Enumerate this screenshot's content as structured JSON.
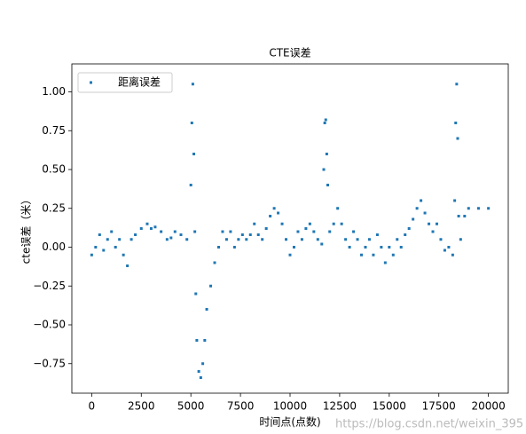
{
  "chart_data": {
    "type": "scatter",
    "title": "CTE误差",
    "x_label": "时间点(点数)",
    "y_label": "cte误差（米）",
    "annotation": "https://blog.csdn.net/weixin_395",
    "legend": "upper left",
    "series": [
      {
        "name": "距离误差",
        "color": "#1f77b4",
        "x": [
          0,
          200,
          400,
          600,
          800,
          1000,
          1200,
          1400,
          1600,
          1800,
          2000,
          2200,
          2500,
          2800,
          3000,
          3200,
          3500,
          3800,
          4000,
          4200,
          4500,
          4800,
          5000,
          5050,
          5100,
          5150,
          5200,
          5250,
          5300,
          5400,
          5500,
          5600,
          5700,
          5800,
          6000,
          6200,
          6400,
          6600,
          6800,
          7000,
          7200,
          7400,
          7600,
          7800,
          8000,
          8200,
          8400,
          8600,
          8800,
          9000,
          9200,
          9400,
          9600,
          9800,
          10000,
          10200,
          10400,
          10600,
          10800,
          11000,
          11200,
          11400,
          11600,
          11700,
          11750,
          11800,
          11850,
          11900,
          12000,
          12200,
          12400,
          12600,
          12800,
          13000,
          13200,
          13400,
          13600,
          13800,
          14000,
          14200,
          14400,
          14600,
          14800,
          15000,
          15200,
          15400,
          15600,
          15800,
          16000,
          16200,
          16400,
          16600,
          16800,
          17000,
          17200,
          17400,
          17600,
          17800,
          18000,
          18200,
          18300,
          18350,
          18400,
          18450,
          18500,
          18600,
          18800,
          19000,
          19500,
          20000
        ],
        "values": [
          -0.05,
          0.0,
          0.08,
          -0.02,
          0.05,
          0.1,
          0.0,
          0.05,
          -0.05,
          -0.12,
          0.05,
          0.08,
          0.12,
          0.15,
          0.12,
          0.13,
          0.1,
          0.05,
          0.06,
          0.1,
          0.08,
          0.05,
          0.4,
          0.8,
          1.05,
          0.6,
          0.1,
          -0.3,
          -0.6,
          -0.8,
          -0.84,
          -0.75,
          -0.6,
          -0.4,
          -0.25,
          -0.1,
          0.0,
          0.1,
          0.05,
          0.1,
          0.0,
          0.05,
          0.08,
          0.05,
          0.08,
          0.15,
          0.08,
          0.05,
          0.12,
          0.2,
          0.25,
          0.22,
          0.15,
          0.05,
          -0.05,
          0.0,
          0.1,
          0.05,
          0.12,
          0.15,
          0.1,
          0.05,
          0.02,
          0.5,
          0.8,
          0.82,
          0.6,
          0.4,
          0.1,
          0.15,
          0.25,
          0.15,
          0.05,
          0.0,
          0.1,
          0.05,
          -0.05,
          0.0,
          0.05,
          -0.05,
          0.08,
          0.0,
          -0.1,
          0.0,
          -0.05,
          0.05,
          0.0,
          0.08,
          0.12,
          0.18,
          0.25,
          0.3,
          0.22,
          0.15,
          0.1,
          0.15,
          0.05,
          -0.02,
          0.0,
          -0.05,
          0.3,
          0.8,
          1.05,
          0.7,
          0.2,
          0.05,
          0.2,
          0.25,
          0.25,
          0.25
        ]
      }
    ],
    "xlim": [
      -1000,
      21000
    ],
    "xticks": [
      0,
      2500,
      5000,
      7500,
      10000,
      12500,
      15000,
      17500,
      20000
    ],
    "ylim": [
      -0.94,
      1.18
    ],
    "yticks": [
      {
        "value": -0.75,
        "label": "−0.75"
      },
      {
        "value": -0.5,
        "label": "−0.50"
      },
      {
        "value": -0.25,
        "label": "−0.25"
      },
      {
        "value": 0,
        "label": "0.00"
      },
      {
        "value": 0.25,
        "label": "0.25"
      },
      {
        "value": 0.5,
        "label": "0.50"
      },
      {
        "value": 0.75,
        "label": "0.75"
      },
      {
        "value": 1,
        "label": "1.00"
      }
    ]
  }
}
